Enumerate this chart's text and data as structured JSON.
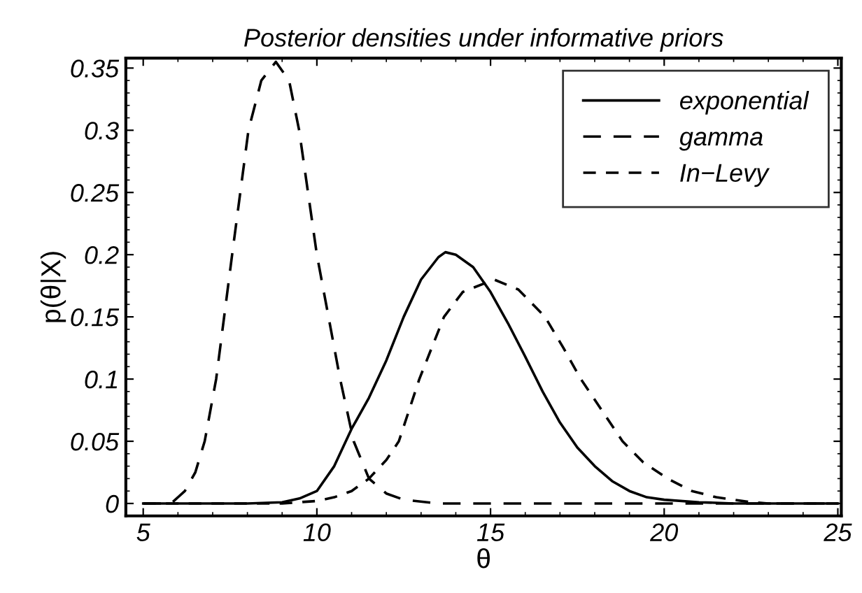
{
  "chart_data": {
    "type": "line",
    "title": "Posterior densities under informative priors",
    "xlabel": "θ",
    "ylabel": "p(θ|X)",
    "series": [
      {
        "name": "exponential",
        "color": "#000000",
        "line_style": "solid",
        "x": [
          5,
          8,
          9,
          9.5,
          10,
          10.5,
          11,
          11.5,
          12,
          12.5,
          13,
          13.5,
          13.7,
          14,
          14.5,
          15,
          15.5,
          16,
          16.5,
          17,
          17.5,
          18,
          18.5,
          19,
          19.5,
          20,
          21,
          22,
          25
        ],
        "values": [
          0,
          0,
          0.001,
          0.004,
          0.01,
          0.03,
          0.06,
          0.085,
          0.115,
          0.15,
          0.18,
          0.198,
          0.202,
          0.2,
          0.19,
          0.17,
          0.145,
          0.118,
          0.09,
          0.065,
          0.045,
          0.03,
          0.018,
          0.01,
          0.005,
          0.003,
          0.001,
          0,
          0
        ]
      },
      {
        "name": "gamma",
        "color": "#000000",
        "line_style": "dashed",
        "x": [
          5,
          5.8,
          6.2,
          6.5,
          6.77,
          7.1,
          7.56,
          8.03,
          8.4,
          8.82,
          9.2,
          9.49,
          10,
          10.67,
          11.06,
          11.5,
          12,
          12.5,
          13.5,
          25
        ],
        "values": [
          0,
          0,
          0.01,
          0.025,
          0.05,
          0.1,
          0.2,
          0.3,
          0.34,
          0.355,
          0.34,
          0.3,
          0.2,
          0.1,
          0.05,
          0.02,
          0.008,
          0.003,
          0,
          0
        ]
      },
      {
        "name": "In−Levy",
        "color": "#000000",
        "line_style": "dashed",
        "x": [
          5,
          9,
          10,
          10.5,
          11,
          11.5,
          12,
          12.36,
          12.95,
          13.66,
          14.2,
          15.1,
          15.8,
          16.57,
          17.1,
          17.6,
          18.2,
          18.8,
          19.4,
          20.1,
          20.8,
          21.5,
          22.5,
          23,
          25
        ],
        "values": [
          0,
          0,
          0.002,
          0.005,
          0.01,
          0.02,
          0.035,
          0.05,
          0.1,
          0.15,
          0.17,
          0.18,
          0.172,
          0.15,
          0.125,
          0.1,
          0.075,
          0.05,
          0.033,
          0.02,
          0.01,
          0.005,
          0.001,
          0,
          0
        ]
      }
    ],
    "xlim": [
      4.5,
      25.1
    ],
    "ylim": [
      -0.01,
      0.358
    ],
    "xticks": [
      5,
      10,
      15,
      20,
      25
    ],
    "yticks": [
      0,
      0.05,
      0.1,
      0.15,
      0.2,
      0.25,
      0.3,
      0.35
    ],
    "grid": false,
    "legend": "top right",
    "marker": "none"
  }
}
